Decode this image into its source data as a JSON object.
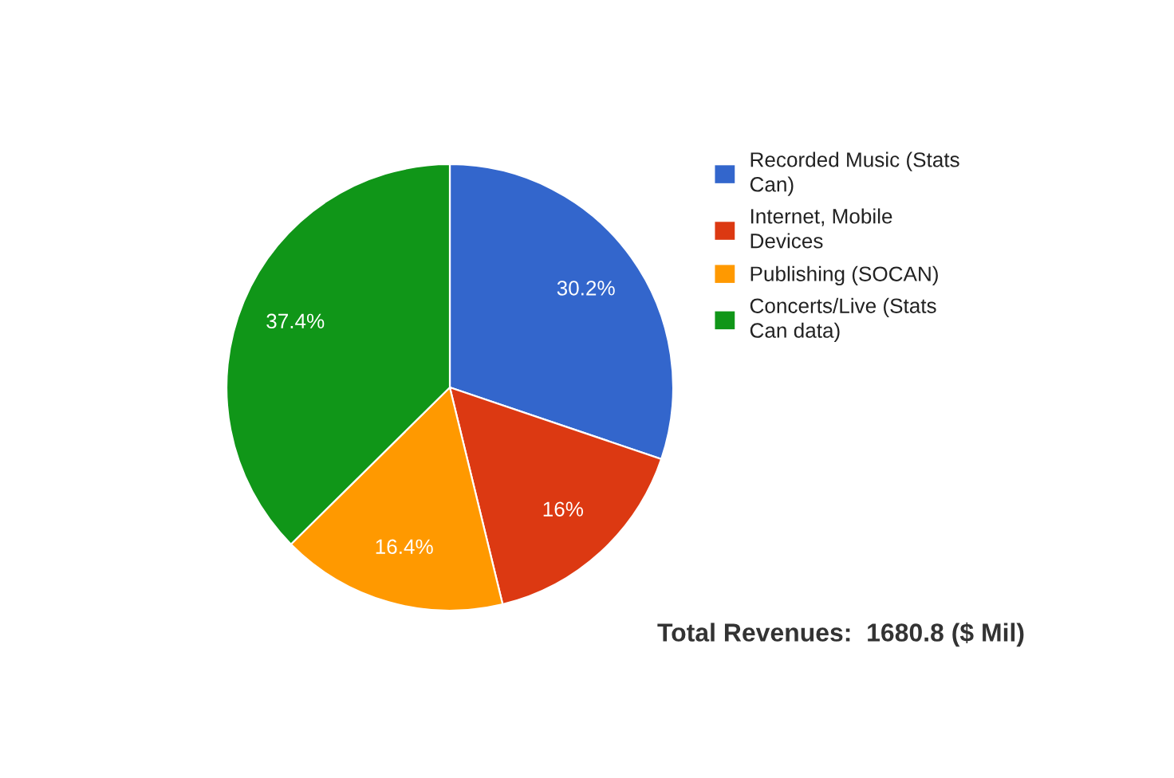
{
  "chart_data": {
    "type": "pie",
    "categories": [
      "Recorded Music (Stats Can)",
      "Internet, Mobile Devices",
      "Publishing (SOCAN)",
      "Concerts/Live (Stats Can data)"
    ],
    "values": [
      30.2,
      16,
      16.4,
      37.4
    ],
    "colors": [
      "#3366cc",
      "#dc3912",
      "#ff9900",
      "#109618"
    ],
    "value_labels": [
      "30.2%",
      "16%",
      "16.4%",
      "37.4%"
    ],
    "legend": "right",
    "annotations": [
      "Total Revenues:  1680.8 ($ Mil)"
    ]
  }
}
